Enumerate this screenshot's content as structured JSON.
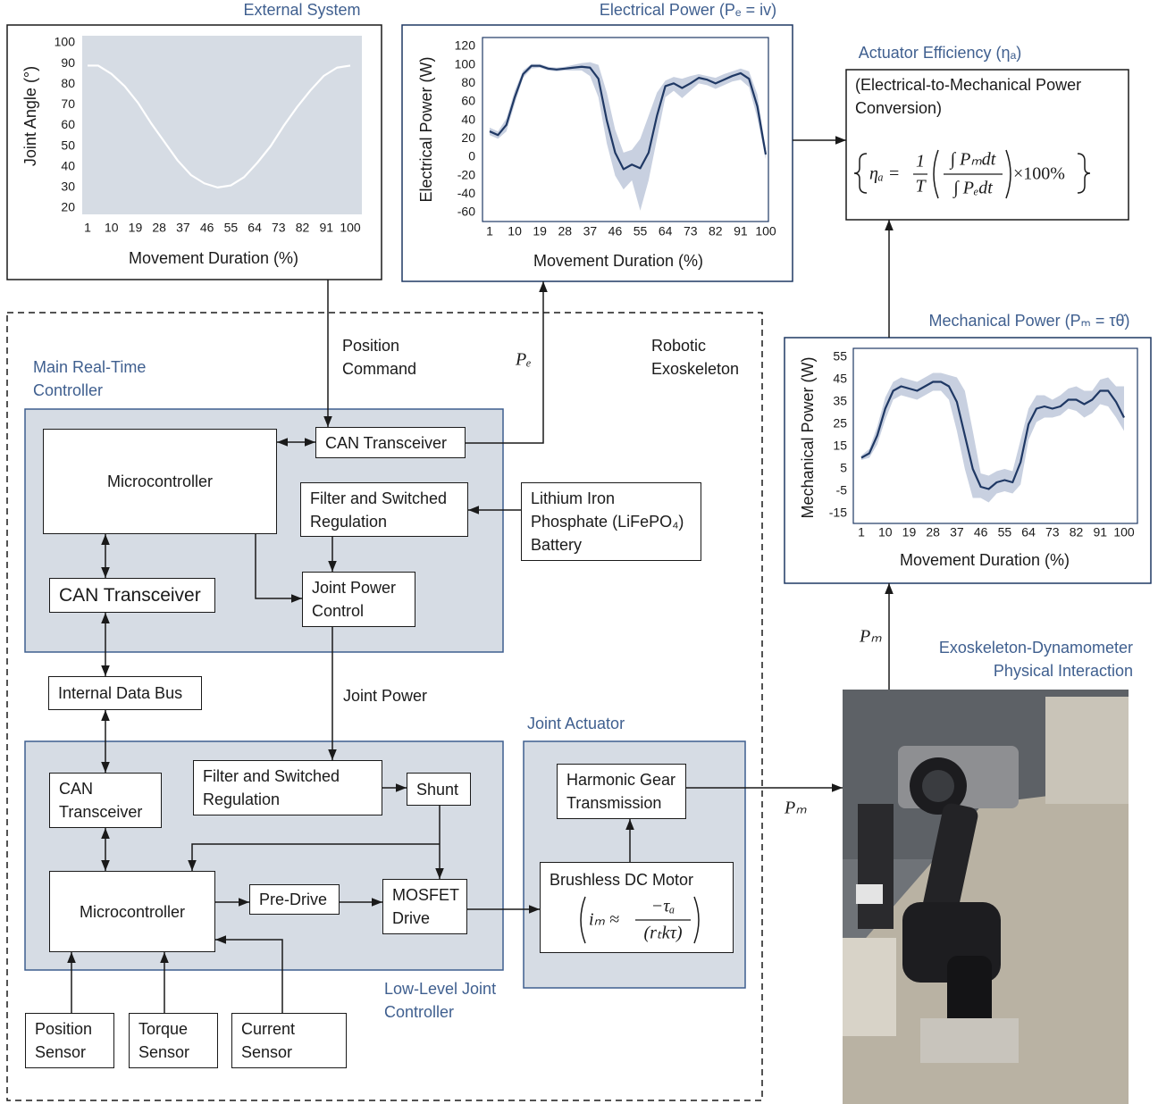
{
  "chart_data": [
    {
      "type": "line",
      "title": "External System",
      "xlabel": "Movement Duration (%)",
      "ylabel": "Joint Angle (°)",
      "x": [
        1,
        5,
        10,
        15,
        20,
        25,
        30,
        35,
        40,
        45,
        50,
        55,
        60,
        65,
        70,
        75,
        80,
        85,
        90,
        95,
        100
      ],
      "values": [
        89,
        89,
        85,
        79,
        71,
        61,
        52,
        43,
        36,
        32,
        30,
        31,
        35,
        42,
        50,
        60,
        69,
        77,
        84,
        88,
        89
      ],
      "color": "#ffffff",
      "background": "#d6dce4",
      "xlim": [
        1,
        100
      ],
      "ylim": [
        20,
        100
      ],
      "xticks": [
        1,
        10,
        19,
        28,
        37,
        46,
        55,
        64,
        73,
        82,
        91,
        100
      ],
      "yticks": [
        20,
        30,
        40,
        50,
        60,
        70,
        80,
        90,
        100
      ]
    },
    {
      "type": "line",
      "title": "Electrical Power (Pₑ = iv)",
      "xlabel": "Movement Duration (%)",
      "ylabel": "Electrical Power (W)",
      "x": [
        1,
        4,
        7,
        10,
        13,
        16,
        19,
        22,
        25,
        28,
        31,
        34,
        37,
        40,
        43,
        46,
        49,
        52,
        55,
        58,
        61,
        64,
        67,
        70,
        73,
        76,
        79,
        82,
        85,
        88,
        91,
        94,
        97,
        100
      ],
      "values": [
        28,
        24,
        35,
        65,
        90,
        99,
        99,
        96,
        95,
        96,
        97,
        98,
        97,
        85,
        40,
        5,
        -13,
        -8,
        -12,
        5,
        45,
        77,
        80,
        75,
        80,
        86,
        84,
        80,
        84,
        88,
        91,
        85,
        55,
        3
      ],
      "band_upper": [
        32,
        28,
        42,
        72,
        94,
        101,
        101,
        98,
        97,
        98,
        100,
        102,
        103,
        100,
        70,
        30,
        5,
        8,
        20,
        45,
        70,
        83,
        87,
        85,
        88,
        90,
        88,
        86,
        90,
        93,
        96,
        93,
        68,
        8
      ],
      "band_lower": [
        24,
        20,
        28,
        58,
        86,
        96,
        97,
        94,
        93,
        94,
        94,
        94,
        88,
        65,
        15,
        -20,
        -35,
        -25,
        -58,
        -25,
        20,
        65,
        72,
        64,
        72,
        80,
        78,
        74,
        78,
        82,
        84,
        76,
        42,
        -2
      ],
      "color": "#1f3864",
      "band_color": "#c8d0e0",
      "xlim": [
        1,
        100
      ],
      "ylim": [
        -60,
        120
      ],
      "xticks": [
        1,
        10,
        19,
        28,
        37,
        46,
        55,
        64,
        73,
        82,
        91,
        100
      ],
      "yticks": [
        -60,
        -40,
        -20,
        0,
        20,
        40,
        60,
        80,
        100,
        120
      ]
    },
    {
      "type": "line",
      "title": "Mechanical Power (Pₘ = τθ̇)",
      "xlabel": "Movement Duration (%)",
      "ylabel": "Mechanical Power (W)",
      "x": [
        1,
        4,
        7,
        10,
        13,
        16,
        19,
        22,
        25,
        28,
        31,
        34,
        37,
        40,
        43,
        46,
        49,
        52,
        55,
        58,
        61,
        64,
        67,
        70,
        73,
        76,
        79,
        82,
        85,
        88,
        91,
        94,
        97,
        100
      ],
      "values": [
        10,
        12,
        20,
        32,
        40,
        42,
        41,
        40,
        42,
        44,
        44,
        42,
        35,
        20,
        5,
        -3,
        -4,
        -1,
        0,
        -1,
        8,
        25,
        32,
        33,
        32,
        33,
        36,
        36,
        34,
        36,
        40,
        40,
        35,
        28
      ],
      "band_upper": [
        11,
        14,
        24,
        37,
        44,
        46,
        45,
        44,
        46,
        48,
        48,
        47,
        46,
        40,
        22,
        3,
        2,
        4,
        5,
        4,
        18,
        32,
        38,
        38,
        36,
        38,
        41,
        42,
        40,
        40,
        45,
        46,
        42,
        42
      ],
      "band_lower": [
        9,
        10,
        16,
        27,
        36,
        38,
        37,
        36,
        38,
        40,
        40,
        36,
        22,
        5,
        -8,
        -8,
        -10,
        -6,
        -5,
        -6,
        -2,
        18,
        26,
        28,
        28,
        29,
        32,
        31,
        28,
        30,
        34,
        33,
        28,
        22
      ],
      "color": "#1f3864",
      "band_color": "#c8d0e0",
      "xlim": [
        1,
        100
      ],
      "ylim": [
        -15,
        55
      ],
      "xticks": [
        1,
        10,
        19,
        28,
        37,
        46,
        55,
        64,
        73,
        82,
        91,
        100
      ],
      "yticks": [
        -15,
        -5,
        5,
        15,
        25,
        35,
        45,
        55
      ]
    }
  ],
  "efficiency": {
    "title": "Actuator Efficiency (ηₐ)",
    "lines": [
      "(Electrical-to-Mechanical Power",
      "Conversion)"
    ],
    "formula": {
      "lhs": "ηₐ =",
      "frac_num": "1",
      "frac_den": "T",
      "ratio_num": "∫ Pₘdt",
      "ratio_den": "∫ Pₑdt",
      "tail": "×100%"
    }
  },
  "labels": {
    "robotic_exoskeleton": [
      "Robotic",
      "Exoskeleton"
    ],
    "main_controller": [
      "Main Real-Time",
      "Controller"
    ],
    "position_command": [
      "Position",
      "Command"
    ],
    "pe": "Pₑ",
    "joint_power": "Joint Power",
    "joint_actuator": "Joint Actuator",
    "low_level": [
      "Low-Level Joint",
      "Controller"
    ],
    "pm_right": "Pₘ",
    "pm_up": "Pₘ",
    "interaction": [
      "Exoskeleton-Dynamometer",
      "Physical Interaction"
    ]
  },
  "boxes": [
    {
      "lines": [
        "Microcontroller"
      ]
    },
    {
      "lines": [
        "CAN Transceiver"
      ]
    },
    {
      "lines": [
        "Filter and Switched",
        "Regulation"
      ]
    },
    {
      "lines": [
        "Lithium Iron",
        "Phosphate (LiFePO₄)",
        "Battery"
      ]
    },
    {
      "lines": [
        "CAN Transceiver"
      ]
    },
    {
      "lines": [
        "Joint Power",
        "Control"
      ]
    },
    {
      "lines": [
        "Internal Data Bus"
      ]
    },
    {
      "lines": [
        "CAN",
        "Transceiver"
      ]
    },
    {
      "lines": [
        "Filter and Switched",
        "Regulation"
      ]
    },
    {
      "lines": [
        "Shunt"
      ]
    },
    {
      "lines": [
        "Microcontroller"
      ]
    },
    {
      "lines": [
        "Pre-Drive"
      ]
    },
    {
      "lines": [
        "MOSFET",
        "Drive"
      ]
    },
    {
      "lines": [
        "Harmonic Gear",
        "Transmission"
      ]
    },
    {
      "lines": [
        "Brushless DC Motor"
      ],
      "formula": {
        "lhs": "iₘ ≈",
        "num": "−τₐ",
        "den": "(rₜkτ)"
      }
    },
    {
      "lines": [
        "Position",
        "Sensor"
      ]
    },
    {
      "lines": [
        "Torque",
        "Sensor"
      ]
    },
    {
      "lines": [
        "Current",
        "Sensor"
      ]
    }
  ]
}
